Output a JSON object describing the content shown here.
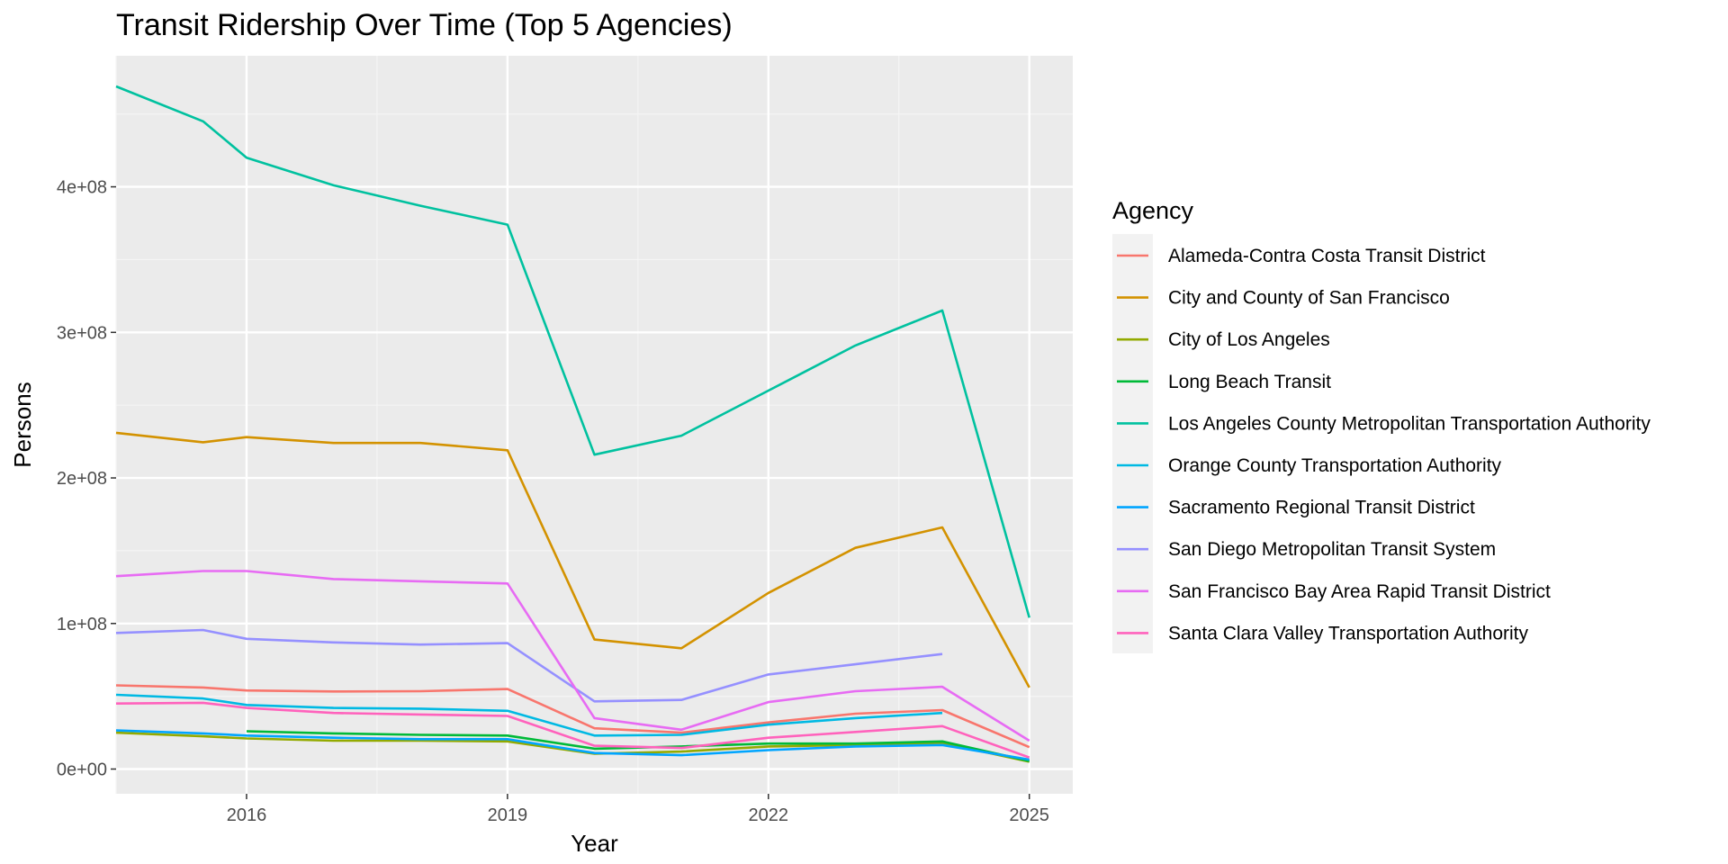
{
  "chart_data": {
    "type": "line",
    "title": "Transit Ridership Over Time (Top 5 Agencies)",
    "xlabel": "Year",
    "ylabel": "Persons",
    "xlim": [
      2014.5,
      2025.5
    ],
    "ylim": [
      -17000000,
      490000000
    ],
    "x_ticks": [
      2016,
      2019,
      2022,
      2025
    ],
    "x_tick_labels": [
      "2016",
      "2019",
      "2022",
      "2025"
    ],
    "y_ticks": [
      0,
      100000000,
      200000000,
      300000000,
      400000000
    ],
    "y_tick_labels": [
      "0e+00",
      "1e+08",
      "2e+08",
      "3e+08",
      "4e+08"
    ],
    "grid": true,
    "legend": {
      "title": "Agency",
      "position": "right"
    },
    "series": [
      {
        "name": "Alameda-Contra Costa Transit District",
        "color": "#F8766D",
        "x": [
          2014.5,
          2015.5,
          2016,
          2017,
          2018,
          2019,
          2020,
          2021,
          2022,
          2023,
          2024,
          2025
        ],
        "y": [
          57500000,
          56000000,
          54000000,
          53300000,
          53500000,
          55000000,
          28000000,
          25000000,
          32000000,
          38000000,
          40500000,
          15000000
        ]
      },
      {
        "name": "City and County of San Francisco",
        "color": "#D39200",
        "x": [
          2014.5,
          2015.5,
          2016,
          2017,
          2018,
          2019,
          2020,
          2021,
          2022,
          2023,
          2024,
          2025
        ],
        "y": [
          231000000,
          224500000,
          228000000,
          224000000,
          224000000,
          219000000,
          89000000,
          83000000,
          121000000,
          152000000,
          166000000,
          56000000
        ]
      },
      {
        "name": "City of Los Angeles",
        "color": "#93AA00",
        "x": [
          2014.5,
          2015.5,
          2016,
          2017,
          2018,
          2019,
          2020,
          2021,
          2022,
          2023,
          2024,
          2025
        ],
        "y": [
          25000000,
          22500000,
          21000000,
          19500000,
          19500000,
          19000000,
          10500000,
          12000000,
          15500000,
          16500000,
          18000000,
          5000000
        ]
      },
      {
        "name": "Long Beach Transit",
        "color": "#00BA38",
        "x": [
          2016,
          2017,
          2018,
          2019,
          2020,
          2021,
          2022,
          2023,
          2024,
          2025
        ],
        "y": [
          26000000,
          24500000,
          23500000,
          23000000,
          14000000,
          15500000,
          17500000,
          17500000,
          19000000,
          5500000
        ]
      },
      {
        "name": "Los Angeles County Metropolitan Transportation Authority",
        "color": "#00C19F",
        "x": [
          2014.5,
          2015.5,
          2016,
          2017,
          2018,
          2019,
          2020,
          2021,
          2022,
          2023,
          2024,
          2025
        ],
        "y": [
          469000000,
          445000000,
          420000000,
          401000000,
          387000000,
          374000000,
          216000000,
          229000000,
          260000000,
          291000000,
          315000000,
          104000000
        ]
      },
      {
        "name": "Orange County Transportation Authority",
        "color": "#00B9E3",
        "x": [
          2014.5,
          2015.5,
          2016,
          2017,
          2018,
          2019,
          2020,
          2021,
          2022,
          2023,
          2024
        ],
        "y": [
          51000000,
          48500000,
          44000000,
          42000000,
          41500000,
          40000000,
          23000000,
          23500000,
          30500000,
          35000000,
          38500000
        ]
      },
      {
        "name": "Sacramento Regional Transit District",
        "color": "#00A5FF",
        "x": [
          2014.5,
          2015.5,
          2016,
          2017,
          2018,
          2019,
          2020,
          2021,
          2022,
          2023,
          2024,
          2025
        ],
        "y": [
          26500000,
          24500000,
          23000000,
          21500000,
          20500000,
          20500000,
          11000000,
          9500000,
          13000000,
          15500000,
          16500000,
          6500000
        ]
      },
      {
        "name": "San Diego Metropolitan Transit System",
        "color": "#9590FF",
        "x": [
          2014.5,
          2015.5,
          2016,
          2017,
          2018,
          2019,
          2020,
          2021,
          2022,
          2023,
          2024
        ],
        "y": [
          93500000,
          95500000,
          89500000,
          87000000,
          85500000,
          86500000,
          46500000,
          47500000,
          65000000,
          72000000,
          79000000
        ]
      },
      {
        "name": "San Francisco Bay Area Rapid Transit District",
        "color": "#E76BF3",
        "x": [
          2014.5,
          2015.5,
          2016,
          2017,
          2018,
          2019,
          2020,
          2021,
          2022,
          2023,
          2024,
          2025
        ],
        "y": [
          132500000,
          136000000,
          136000000,
          130500000,
          129000000,
          127500000,
          35000000,
          27000000,
          46000000,
          53500000,
          56500000,
          19500000
        ]
      },
      {
        "name": "Santa Clara Valley Transportation Authority",
        "color": "#FF62BC",
        "x": [
          2014.5,
          2015.5,
          2016,
          2017,
          2018,
          2019,
          2020,
          2021,
          2022,
          2023,
          2024,
          2025
        ],
        "y": [
          45000000,
          45500000,
          42000000,
          38500000,
          37500000,
          36500000,
          16000000,
          14500000,
          21500000,
          25500000,
          29500000,
          8000000
        ]
      }
    ]
  }
}
